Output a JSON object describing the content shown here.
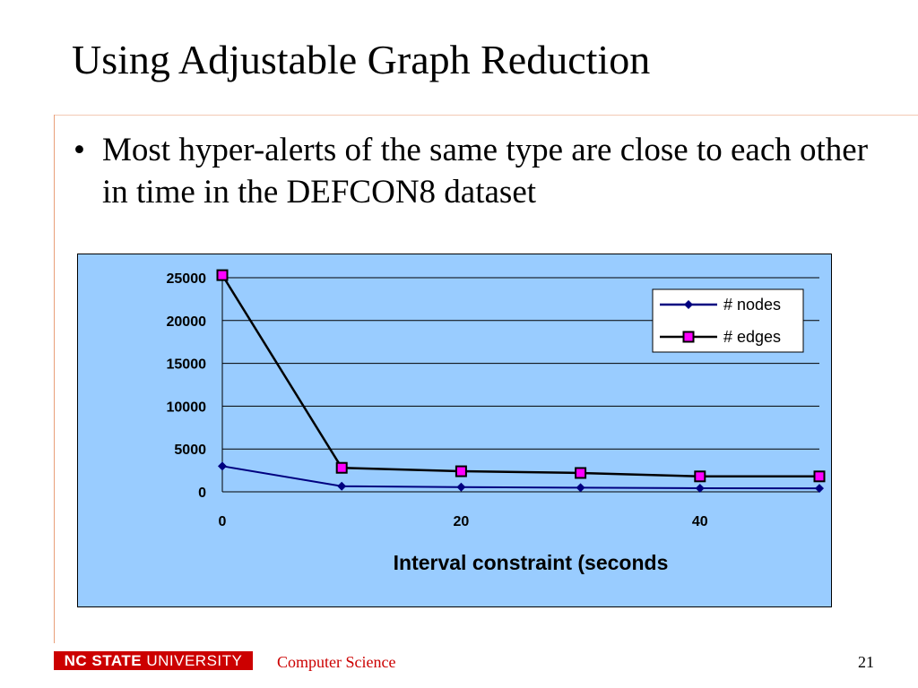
{
  "slide": {
    "title": "Using Adjustable Graph Reduction",
    "bullet_marker": "•",
    "bullet": "Most hyper-alerts of the same type are close to each other in time in the DEFCON8 dataset",
    "footer": {
      "logo_bold": "NC STATE",
      "logo_rest": " UNIVERSITY",
      "department": "Computer Science",
      "page_number": "21"
    }
  },
  "chart_data": {
    "type": "line",
    "title": "",
    "xlabel": "Interval constraint (seconds",
    "ylabel": "",
    "xlim": [
      0,
      50
    ],
    "ylim": [
      0,
      25000
    ],
    "x_ticks": [
      "0",
      "20",
      "40"
    ],
    "y_ticks": [
      "0",
      "5000",
      "10000",
      "15000",
      "20000",
      "25000"
    ],
    "grid": "horizontal",
    "legend_position": "top-right",
    "x": [
      0,
      10,
      20,
      30,
      40,
      50
    ],
    "series": [
      {
        "name": "# nodes",
        "values": [
          3000,
          650,
          550,
          480,
          420,
          400
        ],
        "color": "#000080",
        "marker": "diamond"
      },
      {
        "name": "# edges",
        "values": [
          25300,
          2800,
          2400,
          2200,
          1800,
          1800
        ],
        "color": "#000000",
        "marker": "square",
        "marker_fill": "#ff00ff"
      }
    ]
  }
}
